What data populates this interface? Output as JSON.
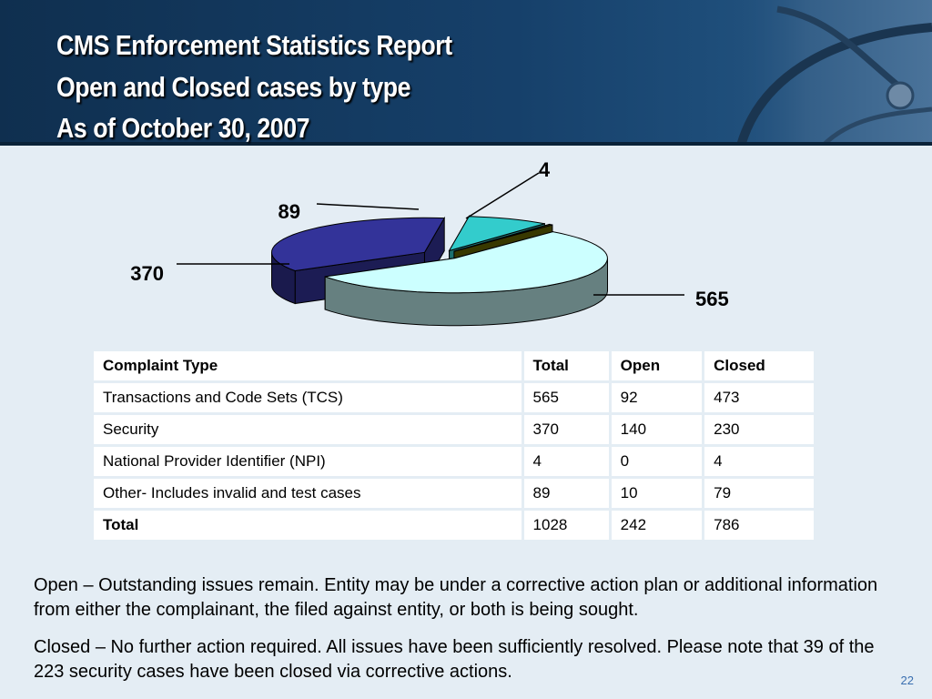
{
  "slide": {
    "title_lines": [
      "CMS Enforcement Statistics Report",
      "Open and Closed cases by type",
      "As of October 30, 2007"
    ],
    "page_number": "22"
  },
  "chart_data": {
    "type": "pie",
    "style": "3d-exploded",
    "categories": [
      "Transactions and Code Sets (TCS)",
      "Security",
      "Other- Includes invalid and test cases",
      "National Provider Identifier (NPI)"
    ],
    "values": [
      565,
      370,
      89,
      4
    ],
    "labels": [
      "565",
      "370",
      "89",
      "4"
    ],
    "colors": [
      "#ccffff",
      "#333399",
      "#33cccc",
      "#666600"
    ],
    "legend": "none"
  },
  "table": {
    "headers": [
      "Complaint Type",
      "Total",
      "Open",
      "Closed"
    ],
    "rows": [
      [
        "Transactions and Code Sets (TCS)",
        "565",
        "92",
        "473"
      ],
      [
        "Security",
        "370",
        "140",
        "230"
      ],
      [
        "National Provider Identifier (NPI)",
        "4",
        "0",
        "4"
      ],
      [
        "Other- Includes invalid and test cases",
        "89",
        "10",
        "79"
      ],
      [
        "Total",
        "1028",
        "242",
        "786"
      ]
    ]
  },
  "notes": [
    "Open – Outstanding issues remain.  Entity may be under a corrective action plan or additional information from either  the complainant, the filed against entity, or both is being sought.",
    "Closed – No further action required.  All issues have been sufficiently resolved.  Please note that 39 of the 223 security cases have been closed via corrective actions."
  ]
}
